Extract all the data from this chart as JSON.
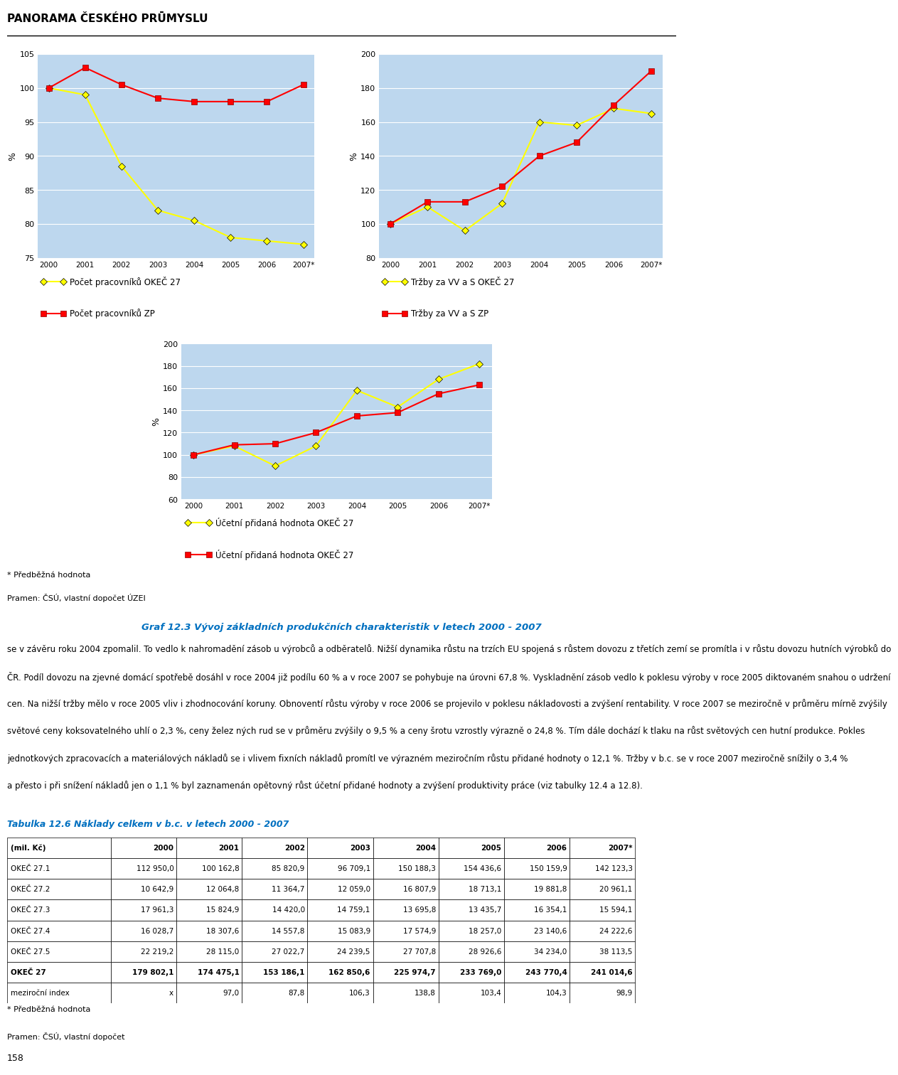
{
  "title": "PANORAMA ČESKÉHO PRŪMYSLU",
  "years": [
    "2000",
    "2001",
    "2002",
    "2003",
    "2004",
    "2005",
    "2006",
    "2007*"
  ],
  "chart1": {
    "ylabel": "%",
    "ylim": [
      75,
      105
    ],
    "yticks": [
      75,
      80,
      85,
      90,
      95,
      100,
      105
    ],
    "series1_label": "Počet pracovníků OKEČ 27",
    "series1_color": "#FFFF00",
    "series1_data": [
      100,
      99.0,
      88.5,
      82.0,
      80.5,
      78.0,
      77.5,
      77.0
    ],
    "series2_label": "Počet pracovníků ZP",
    "series2_color": "#FF0000",
    "series2_data": [
      100,
      103.0,
      100.5,
      98.5,
      98.0,
      98.0,
      98.0,
      100.5
    ]
  },
  "chart2": {
    "ylabel": "%",
    "ylim": [
      80,
      200
    ],
    "yticks": [
      80,
      100,
      120,
      140,
      160,
      180,
      200
    ],
    "series1_label": "Tržby za VV a S OKEČ 27",
    "series1_color": "#FFFF00",
    "series1_data": [
      100,
      110.0,
      96.0,
      112.0,
      160.0,
      158.0,
      168.0,
      165.0
    ],
    "series2_label": "Tržby za VV a S ZP",
    "series2_color": "#FF0000",
    "series2_data": [
      100,
      113.0,
      113.0,
      122.0,
      140.0,
      148.0,
      170.0,
      190.0
    ]
  },
  "chart3": {
    "ylabel": "%",
    "ylim": [
      60,
      200
    ],
    "yticks": [
      60,
      80,
      100,
      120,
      140,
      160,
      180,
      200
    ],
    "series1_label": "Účetní přidaná hodnota OKEČ 27",
    "series1_color": "#FFFF00",
    "series1_data": [
      100,
      108.0,
      90.0,
      108.0,
      158.0,
      143.0,
      168.0,
      182.0
    ],
    "series2_label": "Účetní přidaná hodnota OKEČ 27",
    "series2_color": "#FF0000",
    "series2_data": [
      100,
      109.0,
      110.0,
      120.0,
      135.0,
      138.0,
      155.0,
      163.0
    ]
  },
  "source_text1": "* Předběžná hodnota",
  "source_text2": "Pramen: ČSÚ, vlastní dopočet ÚZEI",
  "graf_title": "Graf 12.3 Vývoj základních produkčních charakteristik v letech 2000 - 2007",
  "paragraph_lines": [
    "se v závěru roku 2004 zpomalil. To vedlo k nahromadění zásob u výrobců a odběratelů. Nižší dynamika růstu na trzích EU spojená s růstem dovozu z třetích zemí se promítla i v růstu dovozu hutních výrobků do",
    "ČR. Podíl dovozu na zjevné domácí spotřebě dosáhl v roce 2004 již podílu 60 % a v roce 2007 se pohybuje na úrovni 67,8 %. Vyskladnění zásob vedlo k poklesu výroby v roce 2005 diktovaném snahou o udržení",
    "cen. Na nižší tržby mělo v roce 2005 vliv i zhodnocování koruny. Obnoventí růstu výroby v roce 2006 se projevilo v poklesu nákladovosti a zvýšení rentability. V roce 2007 se meziročně v průměru mírně zvýšily",
    "světové ceny koksovatelného uhlí o 2,3 %, ceny želez ných rud se v průměru zvýšily o 9,5 % a ceny šrotu vzrostly výrazně o 24,8 %. Tím dále dochází k tlaku na růst světových cen hutní produkce. Pokles",
    "jednotkových zpracovacích a materiálových nákladů se i vlivem fixních nákladů promítl ve výrazném meziročním růstu přidané hodnoty o 12,1 %. Tržby v b.c. se v roce 2007 meziročně snížily o 3,4 %",
    "a přesto i při snížení nákladů jen o 1,1 % byl zaznamenán opětovný růst účetní přidané hodnoty a zvýšení produktivity práce (viz tabulky 12.4 a 12.8)."
  ],
  "table_title": "Tabulka 12.6 Náklady celkem v b.c. v letech 2000 - 2007",
  "table_headers": [
    "(mil. Kč)",
    "2000",
    "2001",
    "2002",
    "2003",
    "2004",
    "2005",
    "2006",
    "2007*"
  ],
  "table_rows": [
    [
      "OKEČ 27.1",
      "112 950,0",
      "100 162,8",
      "85 820,9",
      "96 709,1",
      "150 188,3",
      "154 436,6",
      "150 159,9",
      "142 123,3"
    ],
    [
      "OKEČ 27.2",
      "10 642,9",
      "12 064,8",
      "11 364,7",
      "12 059,0",
      "16 807,9",
      "18 713,1",
      "19 881,8",
      "20 961,1"
    ],
    [
      "OKEČ 27.3",
      "17 961,3",
      "15 824,9",
      "14 420,0",
      "14 759,1",
      "13 695,8",
      "13 435,7",
      "16 354,1",
      "15 594,1"
    ],
    [
      "OKEČ 27.4",
      "16 028,7",
      "18 307,6",
      "14 557,8",
      "15 083,9",
      "17 574,9",
      "18 257,0",
      "23 140,6",
      "24 222,6"
    ],
    [
      "OKEČ 27.5",
      "22 219,2",
      "28 115,0",
      "27 022,7",
      "24 239,5",
      "27 707,8",
      "28 926,6",
      "34 234,0",
      "38 113,5"
    ],
    [
      "OKEČ 27",
      "179 802,1",
      "174 475,1",
      "153 186,1",
      "162 850,6",
      "225 974,7",
      "233 769,0",
      "243 770,4",
      "241 014,6"
    ],
    [
      "meziroční index",
      "x",
      "97,0",
      "87,8",
      "106,3",
      "138,8",
      "103,4",
      "104,3",
      "98,9"
    ]
  ],
  "table_bold_rows": [
    5
  ],
  "footer_text1": "* Předběžná hodnota",
  "footer_text2": "Pramen: ČSÚ, vlastní dopočet",
  "page_number": "158",
  "plot_bg": "#BDD7EE"
}
